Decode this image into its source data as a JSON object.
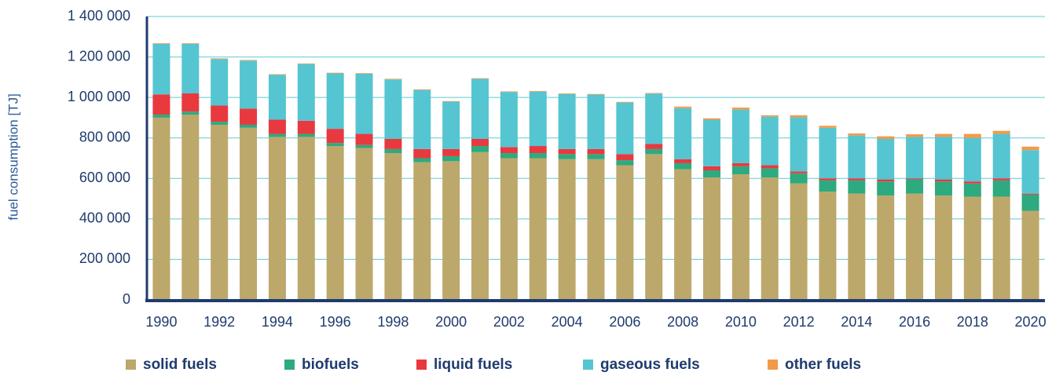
{
  "chart_data": {
    "type": "stacked_bar",
    "y_label": "fuel consumption [TJ]",
    "categories": [
      "1990",
      null,
      "1992",
      null,
      "1994",
      null,
      "1996",
      null,
      "1998",
      null,
      "2000",
      null,
      "2002",
      null,
      "2004",
      null,
      "2006",
      null,
      "2008",
      null,
      "2010",
      null,
      "2012",
      null,
      "2014",
      null,
      "2016",
      null,
      "2018",
      null,
      "2020"
    ],
    "series": [
      {
        "name": "solid fuels",
        "color": "#bca86a",
        "values": [
          900000,
          915000,
          865000,
          850000,
          805000,
          805000,
          760000,
          750000,
          725000,
          680000,
          685000,
          730000,
          700000,
          700000,
          695000,
          695000,
          665000,
          720000,
          645000,
          605000,
          620000,
          605000,
          575000,
          535000,
          525000,
          515000,
          525000,
          515000,
          510000,
          510000,
          440000
        ]
      },
      {
        "name": "biofuels",
        "color": "#2daa7f",
        "values": [
          15000,
          15000,
          15000,
          15000,
          15000,
          15000,
          15000,
          15000,
          20000,
          20000,
          25000,
          30000,
          25000,
          25000,
          25000,
          25000,
          25000,
          25000,
          30000,
          35000,
          40000,
          45000,
          50000,
          55000,
          65000,
          70000,
          70000,
          70000,
          65000,
          80000,
          80000
        ]
      },
      {
        "name": "liquid fuels",
        "color": "#e8393f",
        "values": [
          100000,
          90000,
          80000,
          80000,
          70000,
          65000,
          70000,
          55000,
          50000,
          45000,
          35000,
          35000,
          30000,
          35000,
          25000,
          25000,
          30000,
          25000,
          20000,
          20000,
          15000,
          15000,
          10000,
          10000,
          10000,
          10000,
          5000,
          10000,
          10000,
          10000,
          5000
        ]
      },
      {
        "name": "gaseous fuels",
        "color": "#55c5d1",
        "values": [
          250000,
          245000,
          230000,
          237000,
          222000,
          280000,
          274000,
          297000,
          294000,
          292000,
          234000,
          297000,
          272000,
          269000,
          272000,
          269000,
          255000,
          249000,
          252000,
          230000,
          265000,
          240000,
          267000,
          250000,
          212000,
          200000,
          205000,
          210000,
          215000,
          220000,
          215000
        ]
      },
      {
        "name": "other fuels",
        "color": "#f39a4a",
        "values": [
          3000,
          3000,
          3000,
          3000,
          3000,
          3000,
          3000,
          3000,
          3000,
          3000,
          3000,
          3000,
          3000,
          3000,
          3000,
          3000,
          3000,
          3000,
          8000,
          7000,
          10000,
          7000,
          10000,
          10000,
          10000,
          13000,
          13000,
          15000,
          20000,
          15000,
          17000
        ]
      }
    ],
    "ylim": [
      0,
      1400000
    ],
    "yticks": [
      0,
      {
        "value": 200000,
        "label": "200 000"
      },
      {
        "value": 400000,
        "label": "400 000"
      },
      {
        "value": 600000,
        "label": "600 000"
      },
      {
        "value": 800000,
        "label": "800 000"
      },
      {
        "value": 1000000,
        "label": "1 000 000"
      },
      {
        "value": 1200000,
        "label": "1 200 000"
      },
      {
        "value": 1400000,
        "label": "1 400 000"
      }
    ],
    "grid": true
  }
}
